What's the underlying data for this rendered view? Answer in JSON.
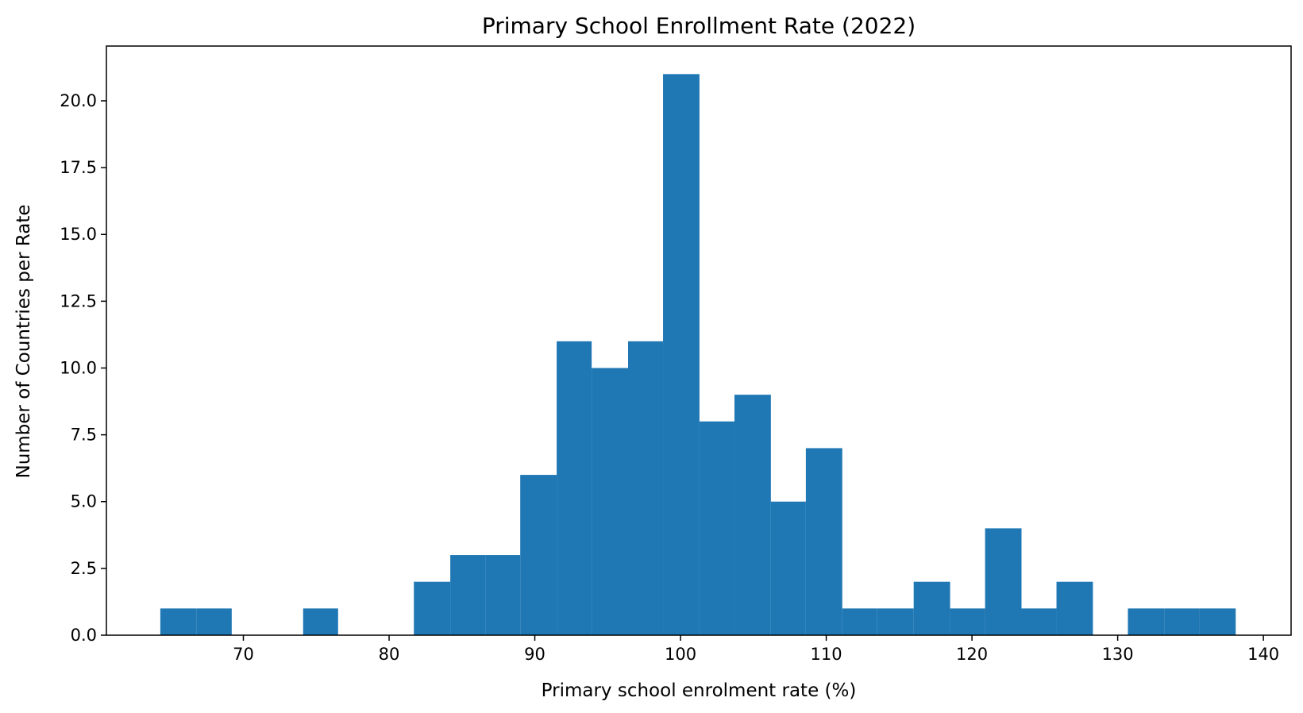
{
  "chart_data": {
    "type": "bar",
    "subtype": "histogram",
    "title": "Primary School Enrollment Rate (2022)",
    "xlabel": "Primary school enrolment rate (%)",
    "ylabel": "Number of Countries per Rate",
    "xlim": [
      60.6,
      141.9
    ],
    "ylim": [
      0,
      22.05
    ],
    "grid": false,
    "legend": "none",
    "bar_color": "#1f77b4",
    "x_ticks": [
      70,
      80,
      90,
      100,
      110,
      120,
      130,
      140
    ],
    "x_tick_labels": [
      "70",
      "80",
      "90",
      "100",
      "110",
      "120",
      "130",
      "140"
    ],
    "y_ticks": [
      0,
      2.5,
      5,
      7.5,
      10,
      12.5,
      15,
      17.5,
      20
    ],
    "y_tick_labels": [
      "0.0",
      "2.5",
      "5.0",
      "7.5",
      "10.0",
      "12.5",
      "15.0",
      "17.5",
      "20.0"
    ],
    "bins": [
      {
        "start": 64.3,
        "end": 66.8,
        "value": 1
      },
      {
        "start": 66.8,
        "end": 69.2,
        "value": 1
      },
      {
        "start": 74.1,
        "end": 76.5,
        "value": 1
      },
      {
        "start": 81.7,
        "end": 84.2,
        "value": 2
      },
      {
        "start": 84.2,
        "end": 86.6,
        "value": 3
      },
      {
        "start": 86.6,
        "end": 89.0,
        "value": 3
      },
      {
        "start": 89.0,
        "end": 91.5,
        "value": 6
      },
      {
        "start": 91.5,
        "end": 93.9,
        "value": 11
      },
      {
        "start": 93.9,
        "end": 96.4,
        "value": 10
      },
      {
        "start": 96.4,
        "end": 98.8,
        "value": 11
      },
      {
        "start": 98.8,
        "end": 101.3,
        "value": 21
      },
      {
        "start": 101.3,
        "end": 103.7,
        "value": 8
      },
      {
        "start": 103.7,
        "end": 106.2,
        "value": 9
      },
      {
        "start": 106.2,
        "end": 108.6,
        "value": 5
      },
      {
        "start": 108.6,
        "end": 111.1,
        "value": 7
      },
      {
        "start": 111.1,
        "end": 113.5,
        "value": 1
      },
      {
        "start": 113.5,
        "end": 116.0,
        "value": 1
      },
      {
        "start": 116.0,
        "end": 118.5,
        "value": 2
      },
      {
        "start": 118.5,
        "end": 120.9,
        "value": 1
      },
      {
        "start": 120.9,
        "end": 123.4,
        "value": 4
      },
      {
        "start": 123.4,
        "end": 125.8,
        "value": 1
      },
      {
        "start": 125.8,
        "end": 128.3,
        "value": 2
      },
      {
        "start": 130.7,
        "end": 133.2,
        "value": 1
      },
      {
        "start": 133.2,
        "end": 135.6,
        "value": 1
      },
      {
        "start": 135.6,
        "end": 138.1,
        "value": 1
      }
    ]
  }
}
